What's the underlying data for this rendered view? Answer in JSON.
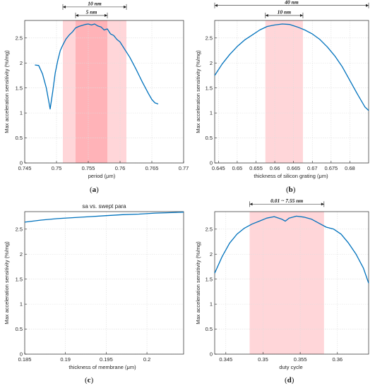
{
  "chart_data": [
    {
      "panel": "(a)",
      "type": "line",
      "title": "",
      "xlabel": "period (μm)",
      "ylabel": "Max acceleration sensitivity (%/mg)",
      "xlim": [
        0.745,
        0.77
      ],
      "ylim": [
        0,
        2.85
      ],
      "xticks": [
        0.745,
        0.75,
        0.755,
        0.76,
        0.765,
        0.77
      ],
      "yticks": [
        0,
        0.5,
        1,
        1.5,
        2,
        2.5
      ],
      "grid": true,
      "color": "#0072BD",
      "x": [
        0.7466,
        0.7472,
        0.7478,
        0.7484,
        0.749,
        0.7494,
        0.7498,
        0.7502,
        0.7506,
        0.751,
        0.7515,
        0.752,
        0.7525,
        0.753,
        0.7535,
        0.754,
        0.7545,
        0.755,
        0.7555,
        0.756,
        0.7565,
        0.757,
        0.7575,
        0.758,
        0.7585,
        0.759,
        0.7595,
        0.76,
        0.7605,
        0.761,
        0.7615,
        0.762,
        0.7625,
        0.763,
        0.7635,
        0.764,
        0.7645,
        0.765,
        0.7655,
        0.766
      ],
      "y": [
        1.96,
        1.95,
        1.78,
        1.5,
        1.08,
        1.42,
        1.8,
        2.05,
        2.25,
        2.36,
        2.48,
        2.56,
        2.62,
        2.7,
        2.73,
        2.75,
        2.77,
        2.78,
        2.76,
        2.78,
        2.74,
        2.72,
        2.66,
        2.68,
        2.58,
        2.55,
        2.47,
        2.42,
        2.32,
        2.22,
        2.12,
        2.0,
        1.88,
        1.75,
        1.62,
        1.5,
        1.38,
        1.27,
        1.2,
        1.18
      ],
      "bands": [
        {
          "from": 0.751,
          "to": 0.761,
          "color": "#ffd6d9"
        },
        {
          "from": 0.753,
          "to": 0.758,
          "color": "#ffb3b8"
        }
      ],
      "annotations": [
        {
          "text": "10 nm",
          "from": 0.751,
          "to": 0.761,
          "y": 3.12
        },
        {
          "text": "5 nm",
          "from": 0.753,
          "to": 0.758,
          "y": 2.95
        }
      ]
    },
    {
      "panel": "(b)",
      "type": "line",
      "title": "",
      "xlabel": "thickness of silicon grating (μm)",
      "ylabel": "Max acceleration sensitivity (%/mg)",
      "xlim": [
        0.644,
        0.685
      ],
      "ylim": [
        0,
        2.85
      ],
      "xticks": [
        0.645,
        0.65,
        0.655,
        0.66,
        0.665,
        0.67,
        0.675,
        0.68
      ],
      "yticks": [
        0,
        0.5,
        1,
        1.5,
        2,
        2.5
      ],
      "grid": true,
      "color": "#0072BD",
      "x": [
        0.644,
        0.646,
        0.648,
        0.65,
        0.652,
        0.654,
        0.656,
        0.658,
        0.66,
        0.662,
        0.664,
        0.666,
        0.668,
        0.67,
        0.672,
        0.674,
        0.676,
        0.678,
        0.68,
        0.682,
        0.684,
        0.685
      ],
      "y": [
        1.75,
        1.98,
        2.17,
        2.33,
        2.46,
        2.56,
        2.66,
        2.73,
        2.76,
        2.78,
        2.77,
        2.72,
        2.66,
        2.58,
        2.47,
        2.32,
        2.14,
        1.92,
        1.65,
        1.38,
        1.12,
        1.05
      ],
      "bands": [
        {
          "from": 0.6575,
          "to": 0.6675,
          "color": "#ffd6d9"
        }
      ],
      "annotations": [
        {
          "text": "40 nm",
          "from": 0.644,
          "to": 0.685,
          "y": 3.15
        },
        {
          "text": "10 nm",
          "from": 0.6575,
          "to": 0.6675,
          "y": 2.95
        }
      ]
    },
    {
      "panel": "(c)",
      "type": "line",
      "title": "sa vs. swept para",
      "xlabel": "thickness of membrane (μm)",
      "ylabel": "Max acceleration sensitivity (%/mg)",
      "xlim": [
        0.185,
        0.2045
      ],
      "ylim": [
        0,
        2.85
      ],
      "xticks": [
        0.185,
        0.19,
        0.195,
        0.2
      ],
      "yticks": [
        0,
        0.5,
        1,
        1.5,
        2,
        2.5
      ],
      "grid": true,
      "color": "#0072BD",
      "x": [
        0.185,
        0.187,
        0.189,
        0.191,
        0.193,
        0.195,
        0.197,
        0.199,
        0.201,
        0.203,
        0.2045
      ],
      "y": [
        2.64,
        2.68,
        2.71,
        2.73,
        2.75,
        2.77,
        2.79,
        2.8,
        2.82,
        2.83,
        2.84
      ],
      "bands": [],
      "annotations": []
    },
    {
      "panel": "(d)",
      "type": "line",
      "title": "",
      "xlabel": "duty cycle",
      "ylabel": "Max acceleration sensitivity (%/mg)",
      "xlim": [
        0.3435,
        0.3642
      ],
      "ylim": [
        0,
        2.85
      ],
      "xticks": [
        0.345,
        0.35,
        0.355,
        0.36
      ],
      "yticks": [
        0,
        0.5,
        1,
        1.5,
        2,
        2.5
      ],
      "grid": true,
      "color": "#0072BD",
      "x": [
        0.3435,
        0.3445,
        0.3455,
        0.3465,
        0.3475,
        0.3485,
        0.3495,
        0.3505,
        0.3515,
        0.3525,
        0.353,
        0.3535,
        0.3545,
        0.3555,
        0.3565,
        0.3575,
        0.3585,
        0.3595,
        0.3605,
        0.3615,
        0.3625,
        0.3635,
        0.3642
      ],
      "y": [
        1.62,
        1.95,
        2.22,
        2.4,
        2.52,
        2.6,
        2.66,
        2.72,
        2.75,
        2.7,
        2.66,
        2.72,
        2.76,
        2.74,
        2.7,
        2.62,
        2.54,
        2.5,
        2.4,
        2.22,
        2.0,
        1.72,
        1.42
      ],
      "bands": [
        {
          "from": 0.3482,
          "to": 0.3582,
          "color": "#ffd6d9"
        }
      ],
      "annotations": [
        {
          "text": "0.01 ~ 7.55 nm",
          "from": 0.3482,
          "to": 0.3582,
          "y": 3.0
        }
      ]
    }
  ]
}
